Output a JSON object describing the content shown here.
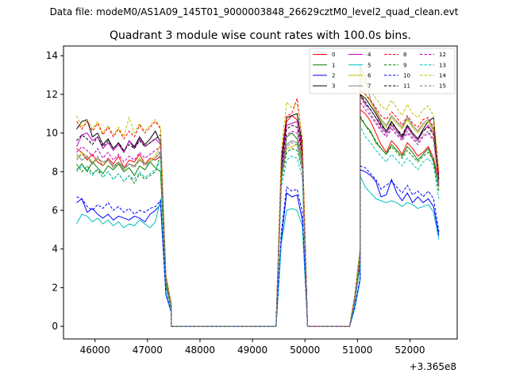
{
  "chart_data": {
    "type": "line",
    "suptitle": "Data file: modeM0/AS1A09_145T01_9000003848_26629cztM0_level2_quad_clean.evt",
    "title": "Quadrant 3 module wise count rates with 100.0s bins.",
    "xlabel": "",
    "ylabel": "",
    "x_offset_label": "+3.365e8",
    "xlim": [
      45400,
      52900
    ],
    "ylim": [
      -0.65,
      14.5
    ],
    "xticks": [
      46000,
      47000,
      48000,
      49000,
      50000,
      51000,
      52000
    ],
    "xtick_labels": [
      "46000",
      "47000",
      "48000",
      "49000",
      "50000",
      "51000",
      "52000"
    ],
    "yticks": [
      0,
      2,
      4,
      6,
      8,
      10,
      12,
      14
    ],
    "ytick_labels": [
      "0",
      "2",
      "4",
      "6",
      "8",
      "10",
      "12",
      "14"
    ],
    "grid": false,
    "legend_position": "top-right",
    "segments": [
      {
        "start": 45650,
        "n": 17
      },
      {
        "start": 47350,
        "n": 2
      },
      {
        "start": 47450,
        "n": 21
      },
      {
        "start": 49550,
        "n": 5
      },
      {
        "start": 50050,
        "n": 9
      },
      {
        "start": 50950,
        "n": 2
      },
      {
        "start": 51050,
        "n": 16
      }
    ],
    "series": [
      {
        "name": "0",
        "color": "#ff0000",
        "dash": "solid",
        "off": [
          9.2,
          9.0,
          8.6,
          8.9,
          8.5,
          8.3,
          8.7,
          8.4,
          8.8,
          8.2,
          8.6,
          8.5,
          8.9,
          8.4,
          8.7,
          8.6,
          8.8
        ],
        "on1": [
          8.3,
          10.6,
          10.9,
          10.7,
          9.0
        ],
        "on2": [
          11.2,
          11.0,
          10.6,
          10.0,
          9.4,
          9.0,
          9.6,
          9.3,
          8.9,
          9.5,
          9.2,
          8.8,
          9.0,
          9.3,
          8.7,
          7.5
        ]
      },
      {
        "name": "1",
        "color": "#008000",
        "dash": "solid",
        "off": [
          8.1,
          8.4,
          8.0,
          8.5,
          8.2,
          7.9,
          8.3,
          8.1,
          8.4,
          8.0,
          8.2,
          7.8,
          8.3,
          8.1,
          8.5,
          8.2,
          8.0
        ],
        "on1": [
          7.9,
          9.8,
          10.0,
          9.7,
          8.6
        ],
        "on2": [
          10.8,
          10.4,
          10.1,
          9.5,
          9.2,
          8.9,
          9.4,
          9.1,
          8.8,
          9.3,
          9.0,
          8.6,
          8.9,
          9.2,
          8.5,
          7.2
        ]
      },
      {
        "name": "2",
        "color": "#0000ff",
        "dash": "solid",
        "off": [
          6.4,
          6.6,
          5.9,
          6.1,
          5.8,
          5.6,
          5.8,
          5.5,
          5.7,
          5.6,
          5.5,
          5.7,
          5.6,
          5.4,
          5.8,
          6.0,
          6.3
        ],
        "on1": [
          4.5,
          6.9,
          6.7,
          6.8,
          5.5
        ],
        "on2": [
          8.1,
          8.0,
          7.8,
          7.5,
          6.7,
          6.8,
          7.6,
          6.9,
          6.5,
          6.9,
          6.4,
          6.7,
          6.4,
          6.6,
          6.2,
          4.7
        ]
      },
      {
        "name": "3",
        "color": "#000000",
        "dash": "solid",
        "off": [
          10.2,
          10.6,
          10.7,
          9.8,
          10.0,
          9.4,
          9.7,
          9.2,
          9.5,
          9.0,
          9.6,
          9.3,
          9.8,
          9.4,
          9.7,
          10.1,
          9.5
        ],
        "on1": [
          8.6,
          10.8,
          10.9,
          11.0,
          9.4
        ],
        "on2": [
          12.0,
          11.8,
          11.4,
          11.0,
          10.5,
          10.1,
          10.6,
          10.2,
          9.8,
          10.4,
          10.0,
          9.7,
          10.2,
          10.6,
          10.8,
          7.6
        ]
      },
      {
        "name": "4",
        "color": "#bf00bf",
        "dash": "solid",
        "off": [
          9.3,
          9.9,
          10.0,
          9.6,
          9.8,
          9.2,
          9.5,
          9.1,
          9.4,
          9.0,
          9.6,
          9.2,
          9.7,
          9.3,
          9.5,
          9.7,
          9.4
        ],
        "on1": [
          8.4,
          10.4,
          10.5,
          10.6,
          9.2
        ],
        "on2": [
          12.0,
          11.5,
          11.2,
          10.8,
          10.3,
          10.0,
          10.4,
          10.1,
          9.7,
          10.3,
          9.9,
          9.6,
          10.1,
          10.4,
          10.0,
          7.8
        ]
      },
      {
        "name": "5",
        "color": "#00bfbf",
        "dash": "solid",
        "off": [
          5.3,
          5.8,
          5.7,
          5.4,
          5.6,
          5.3,
          5.5,
          5.2,
          5.4,
          5.1,
          5.3,
          5.2,
          5.5,
          5.3,
          5.1,
          5.4,
          6.6
        ],
        "on1": [
          4.3,
          6.0,
          6.1,
          6.0,
          5.2
        ],
        "on2": [
          7.8,
          7.2,
          6.9,
          6.6,
          6.5,
          6.4,
          6.5,
          6.4,
          6.2,
          6.4,
          6.3,
          6.1,
          6.2,
          6.3,
          5.9,
          4.5
        ]
      },
      {
        "name": "6",
        "color": "#bfbf00",
        "dash": "solid",
        "off": [
          8.7,
          9.0,
          8.8,
          8.5,
          8.7,
          8.3,
          8.6,
          8.2,
          8.5,
          8.1,
          8.4,
          8.3,
          8.7,
          8.4,
          8.6,
          8.8,
          9.4
        ],
        "on1": [
          7.8,
          9.2,
          9.3,
          9.4,
          8.4
        ],
        "on2": [
          13.4,
          12.0,
          11.6,
          11.1,
          10.6,
          10.3,
          10.8,
          10.5,
          10.2,
          10.7,
          10.3,
          10.0,
          10.4,
          10.6,
          10.1,
          7.2
        ]
      },
      {
        "name": "7",
        "color": "#7f7f7f",
        "dash": "solid",
        "off": [
          8.9,
          8.6,
          8.8,
          8.4,
          8.7,
          8.5,
          8.6,
          8.3,
          8.5,
          8.2,
          8.4,
          8.3,
          8.6,
          8.4,
          8.5,
          8.7,
          9.0
        ],
        "on1": [
          7.7,
          9.4,
          9.6,
          9.5,
          8.3
        ],
        "on2": [
          13.5,
          12.9,
          11.7,
          11.2,
          10.7,
          10.4,
          10.9,
          10.6,
          10.3,
          10.8,
          10.4,
          10.1,
          10.5,
          10.7,
          10.2,
          7.4
        ]
      },
      {
        "name": "8",
        "color": "#ff0000",
        "dash": "dashed",
        "off": [
          10.6,
          10.2,
          10.6,
          10.1,
          10.5,
          9.9,
          10.3,
          9.8,
          10.2,
          9.7,
          10.1,
          9.8,
          10.4,
          10.0,
          10.3,
          10.6,
          10.2
        ],
        "on1": [
          8.9,
          10.9,
          11.0,
          11.8,
          9.6
        ],
        "on2": [
          12.2,
          12.0,
          11.7,
          11.3,
          10.9,
          10.7,
          11.1,
          10.8,
          10.4,
          10.9,
          10.5,
          10.3,
          10.7,
          10.8,
          10.3,
          7.9
        ]
      },
      {
        "name": "9",
        "color": "#008000",
        "dash": "dashed",
        "off": [
          8.4,
          8.0,
          8.3,
          7.9,
          8.1,
          7.7,
          8.0,
          7.6,
          7.9,
          7.5,
          7.8,
          7.4,
          7.9,
          7.6,
          7.8,
          8.0,
          8.9
        ],
        "on1": [
          7.5,
          9.0,
          9.2,
          9.1,
          8.1
        ],
        "on2": [
          10.9,
          10.4,
          10.0,
          9.6,
          9.2,
          8.9,
          9.3,
          9.0,
          8.7,
          9.1,
          8.8,
          8.5,
          8.8,
          9.0,
          8.6,
          7.0
        ]
      },
      {
        "name": "10",
        "color": "#0000ff",
        "dash": "dashed",
        "off": [
          6.7,
          6.6,
          6.2,
          6.0,
          6.3,
          6.1,
          6.4,
          6.0,
          6.2,
          5.9,
          6.1,
          5.8,
          6.0,
          5.9,
          6.1,
          6.2,
          6.5
        ],
        "on1": [
          4.9,
          7.2,
          7.0,
          7.1,
          5.9
        ],
        "on2": [
          8.3,
          8.2,
          7.9,
          7.6,
          7.1,
          7.3,
          7.5,
          7.2,
          6.9,
          7.3,
          6.8,
          7.0,
          6.7,
          7.0,
          6.6,
          4.9
        ]
      },
      {
        "name": "11",
        "color": "#000000",
        "dash": "dashed",
        "off": [
          9.6,
          9.9,
          9.7,
          9.4,
          9.8,
          9.3,
          9.6,
          9.2,
          9.5,
          9.1,
          9.4,
          9.2,
          9.6,
          9.3,
          9.5,
          9.7,
          9.9
        ],
        "on1": [
          8.2,
          10.2,
          10.4,
          10.3,
          8.9
        ],
        "on2": [
          12.0,
          11.6,
          11.2,
          10.8,
          10.4,
          10.1,
          10.5,
          10.2,
          9.9,
          10.4,
          10.0,
          9.7,
          10.1,
          10.3,
          9.9,
          7.5
        ]
      },
      {
        "name": "12",
        "color": "#bf00bf",
        "dash": "dashed",
        "off": [
          9.0,
          9.3,
          9.1,
          8.8,
          9.2,
          8.7,
          9.0,
          8.6,
          8.9,
          8.5,
          8.8,
          8.6,
          9.0,
          8.7,
          8.9,
          9.1,
          9.3
        ],
        "on1": [
          8.0,
          9.9,
          10.1,
          10.0,
          8.8
        ],
        "on2": [
          11.6,
          11.2,
          10.9,
          10.5,
          10.1,
          9.8,
          10.2,
          9.9,
          9.6,
          10.0,
          9.7,
          9.4,
          9.8,
          10.0,
          9.6,
          7.3
        ]
      },
      {
        "name": "13",
        "color": "#00bfbf",
        "dash": "dashed",
        "off": [
          8.0,
          8.3,
          8.1,
          7.8,
          8.2,
          7.7,
          8.0,
          7.6,
          7.9,
          7.5,
          7.8,
          7.6,
          8.0,
          7.7,
          7.9,
          8.1,
          8.6
        ],
        "on1": [
          7.2,
          8.6,
          8.8,
          8.7,
          7.7
        ],
        "on2": [
          10.4,
          9.8,
          9.5,
          9.1,
          8.8,
          8.5,
          8.9,
          8.6,
          8.3,
          8.7,
          8.4,
          8.1,
          8.5,
          8.7,
          8.3,
          6.6
        ]
      },
      {
        "name": "14",
        "color": "#bfbf00",
        "dash": "dashed",
        "off": [
          10.9,
          10.3,
          10.7,
          10.2,
          10.6,
          10.0,
          10.4,
          9.9,
          10.3,
          9.8,
          10.8,
          10.0,
          10.5,
          10.1,
          10.4,
          10.7,
          10.3
        ],
        "on1": [
          9.1,
          11.6,
          11.3,
          11.5,
          9.8
        ],
        "on2": [
          13.3,
          12.6,
          12.2,
          11.8,
          11.4,
          11.2,
          11.7,
          11.3,
          10.9,
          11.5,
          11.0,
          10.8,
          11.2,
          11.4,
          10.9,
          8.1
        ]
      },
      {
        "name": "15",
        "color": "#7f7f7f",
        "dash": "dashed",
        "off": [
          8.6,
          8.9,
          8.7,
          8.4,
          8.8,
          8.3,
          8.6,
          8.2,
          8.5,
          8.1,
          8.4,
          8.2,
          8.6,
          8.3,
          8.5,
          8.7,
          9.1
        ],
        "on1": [
          7.6,
          9.3,
          9.5,
          9.4,
          8.2
        ],
        "on2": [
          11.9,
          11.4,
          11.0,
          10.6,
          10.2,
          9.9,
          10.3,
          10.0,
          9.7,
          10.1,
          9.8,
          9.5,
          9.9,
          10.1,
          9.7,
          7.4
        ]
      }
    ]
  }
}
